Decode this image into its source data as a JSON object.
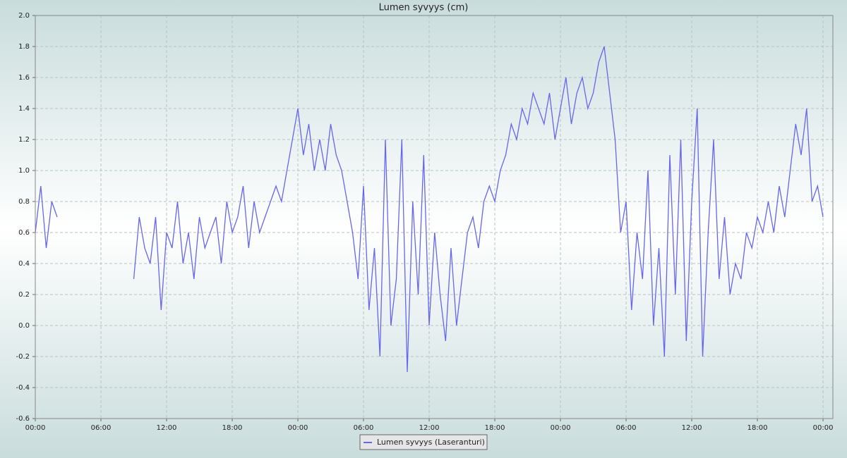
{
  "chart_data": {
    "type": "line",
    "title": "Lumen syvyys (cm)",
    "x": [
      0,
      0.5,
      1,
      1.5,
      2,
      2.5,
      3,
      3.5,
      4,
      4.5,
      5,
      5.5,
      6,
      6.5,
      7,
      7.5,
      8,
      8.5,
      9,
      9.5,
      10,
      10.5,
      11,
      11.5,
      12,
      12.5,
      13,
      13.5,
      14,
      14.5,
      15,
      15.5,
      16,
      16.5,
      17,
      17.5,
      18,
      18.5,
      19,
      19.5,
      20,
      20.5,
      21,
      21.5,
      22,
      22.5,
      23,
      23.5,
      24,
      24.5,
      25,
      25.5,
      26,
      26.5,
      27,
      27.5,
      28,
      28.5,
      29,
      29.5,
      30,
      30.5,
      31,
      31.5,
      32,
      32.5,
      33,
      33.5,
      34,
      34.5,
      35,
      35.5,
      36,
      36.5,
      37,
      37.5,
      38,
      38.5,
      39,
      39.5,
      40,
      40.5,
      41,
      41.5,
      42,
      42.5,
      43,
      43.5,
      44,
      44.5,
      45,
      45.5,
      46,
      46.5,
      47,
      47.5,
      48,
      48.5,
      49,
      49.5,
      50,
      50.5,
      51,
      51.5,
      52,
      52.5,
      53,
      53.5,
      54,
      54.5,
      55,
      55.5,
      56,
      56.5,
      57,
      57.5,
      58,
      58.5,
      59,
      59.5,
      60,
      60.5,
      61,
      61.5,
      62,
      62.5,
      63,
      63.5,
      64,
      64.5,
      65,
      65.5,
      66,
      66.5,
      67,
      67.5,
      68,
      68.5,
      69,
      69.5,
      70,
      70.5,
      71,
      71.5,
      72
    ],
    "series": [
      {
        "name": "Lumen syvyys (Laseranturi)",
        "color": "#6666ee",
        "values": [
          0.6,
          0.9,
          0.5,
          0.8,
          0.7,
          null,
          null,
          null,
          null,
          null,
          null,
          null,
          null,
          null,
          null,
          null,
          null,
          null,
          0.3,
          0.7,
          0.5,
          0.4,
          0.7,
          0.1,
          0.6,
          0.5,
          0.8,
          0.4,
          0.6,
          0.3,
          0.7,
          0.5,
          0.6,
          0.7,
          0.4,
          0.8,
          0.6,
          0.7,
          0.9,
          0.5,
          0.8,
          0.6,
          0.7,
          0.8,
          0.9,
          0.8,
          1.0,
          1.2,
          1.4,
          1.1,
          1.3,
          1.0,
          1.2,
          1.0,
          1.3,
          1.1,
          1.0,
          0.8,
          0.6,
          0.3,
          0.9,
          0.1,
          0.5,
          -0.2,
          1.2,
          0.0,
          0.3,
          1.2,
          -0.3,
          0.8,
          0.2,
          1.1,
          0.0,
          0.6,
          0.2,
          -0.1,
          0.5,
          0.0,
          0.3,
          0.6,
          0.7,
          0.5,
          0.8,
          0.9,
          0.8,
          1.0,
          1.1,
          1.3,
          1.2,
          1.4,
          1.3,
          1.5,
          1.4,
          1.3,
          1.5,
          1.2,
          1.4,
          1.6,
          1.3,
          1.5,
          1.6,
          1.4,
          1.5,
          1.7,
          1.8,
          1.5,
          1.2,
          0.6,
          0.8,
          0.1,
          0.6,
          0.3,
          1.0,
          0.0,
          0.5,
          -0.2,
          1.1,
          0.2,
          1.2,
          -0.1,
          0.8,
          1.4,
          -0.2,
          0.6,
          1.2,
          0.3,
          0.7,
          0.2,
          0.4,
          0.3,
          0.6,
          0.5,
          0.7,
          0.6,
          0.8,
          0.6,
          0.9,
          0.7,
          1.0,
          1.3,
          1.1,
          1.4,
          0.8,
          0.9,
          0.7
        ]
      }
    ],
    "xlim": [
      0,
      72.9
    ],
    "xticks": [
      {
        "value": 0,
        "label": "00:00"
      },
      {
        "value": 6,
        "label": "06:00"
      },
      {
        "value": 12,
        "label": "12:00"
      },
      {
        "value": 18,
        "label": "18:00"
      },
      {
        "value": 24,
        "label": "00:00"
      },
      {
        "value": 30,
        "label": "06:00"
      },
      {
        "value": 36,
        "label": "12:00"
      },
      {
        "value": 42,
        "label": "18:00"
      },
      {
        "value": 48,
        "label": "00:00"
      },
      {
        "value": 54,
        "label": "06:00"
      },
      {
        "value": 60,
        "label": "12:00"
      },
      {
        "value": 66,
        "label": "18:00"
      },
      {
        "value": 72,
        "label": "00:00"
      }
    ],
    "ylim": [
      -0.6,
      2.0
    ],
    "yticks": [
      -0.6,
      -0.4,
      -0.2,
      {
        "value": 0,
        "label": "0.0"
      },
      0.2,
      0.4,
      0.6,
      0.8,
      {
        "value": 1,
        "label": "1.0"
      },
      1.2,
      1.4,
      1.6,
      1.8,
      {
        "value": 2,
        "label": "2.0"
      }
    ],
    "grid": true,
    "legend": "bottom"
  }
}
